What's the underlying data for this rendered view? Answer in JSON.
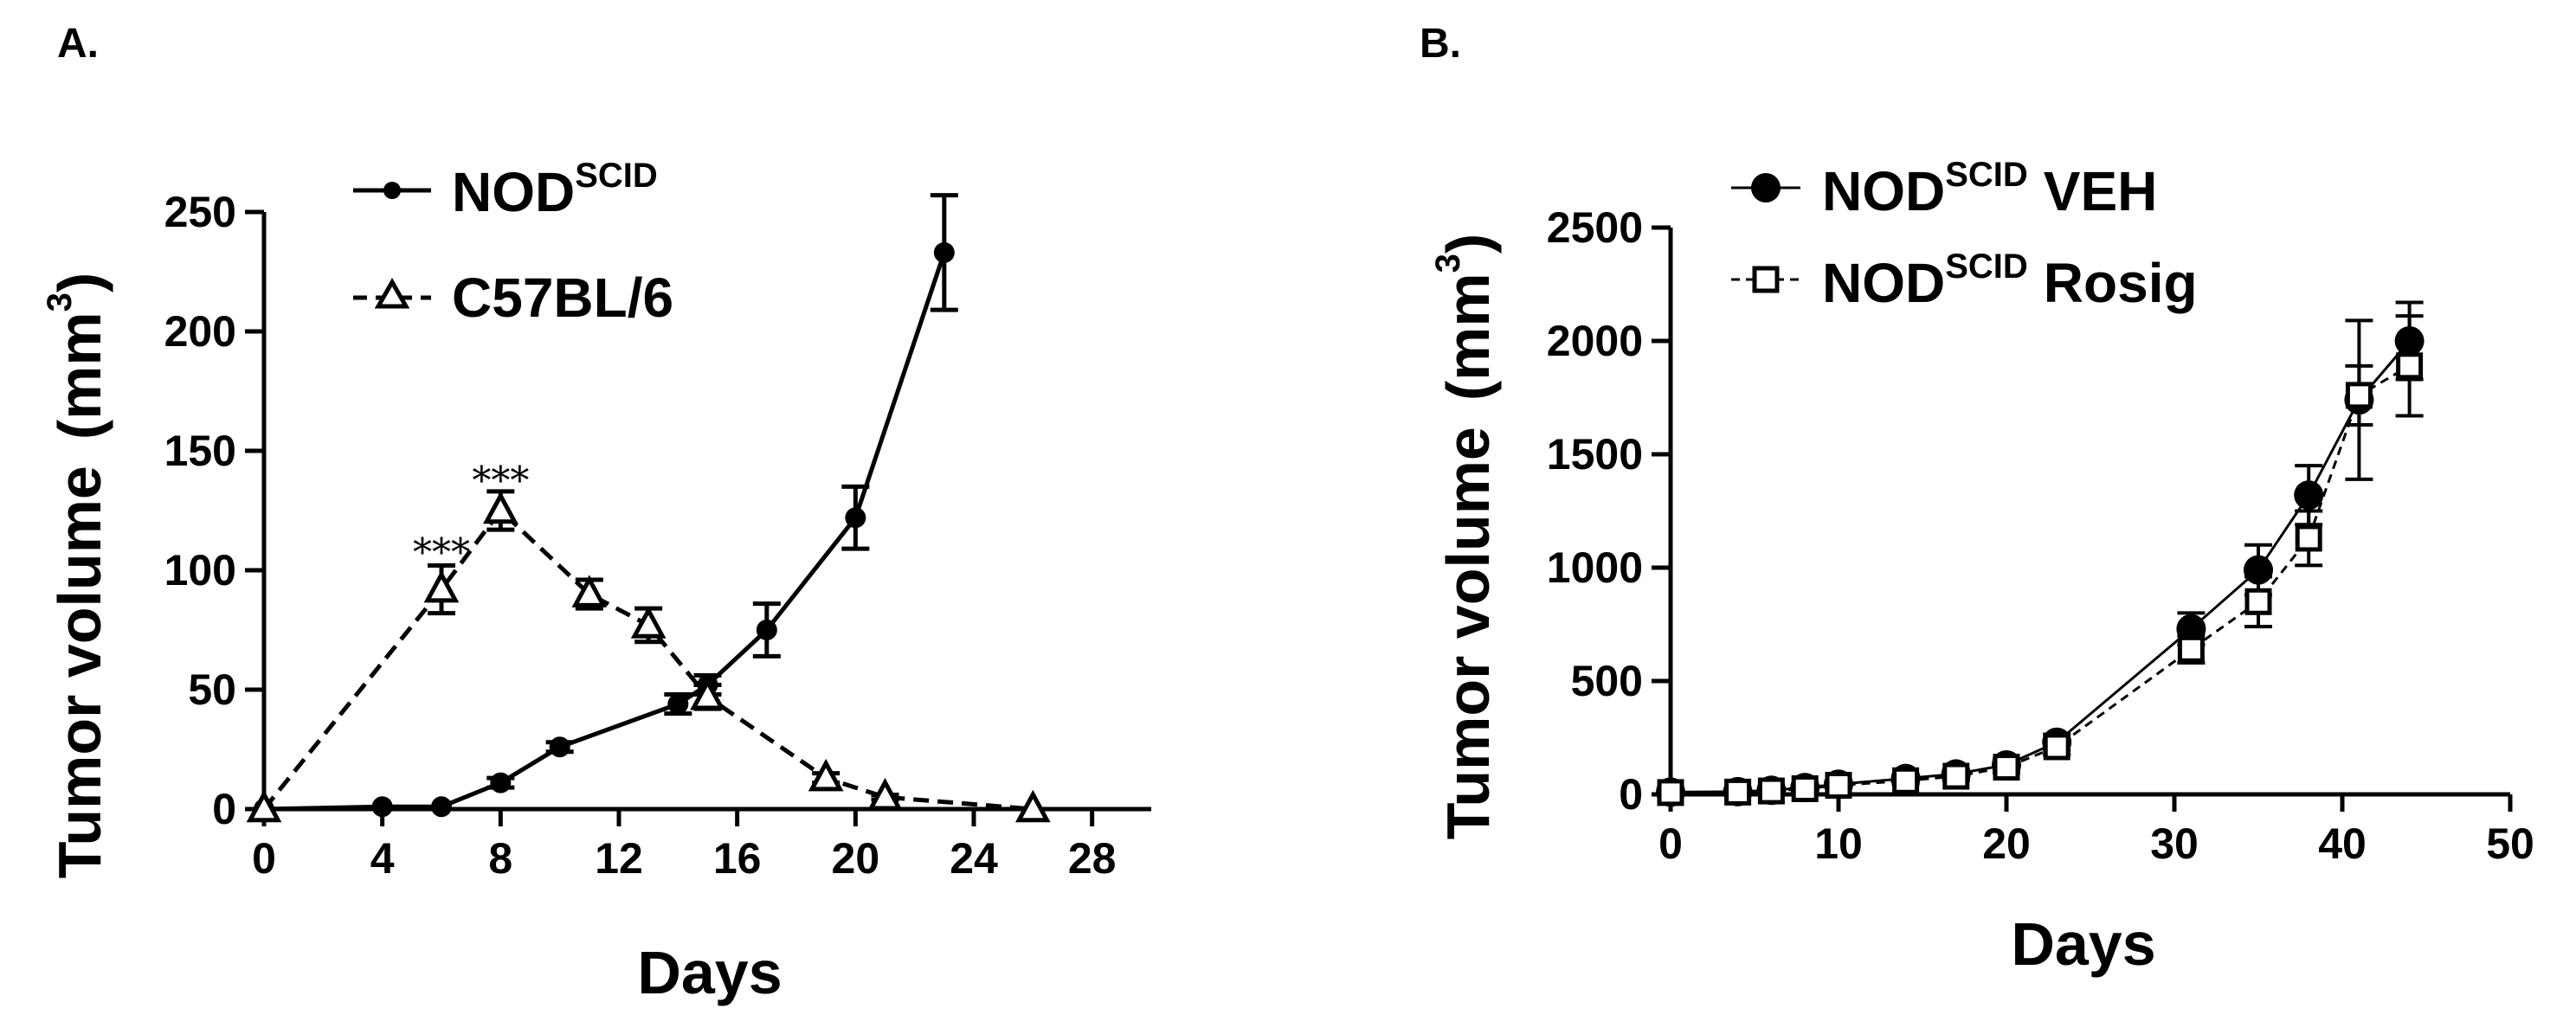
{
  "panels": {
    "a": {
      "label": "A."
    },
    "b": {
      "label": "B."
    }
  },
  "colors": {
    "ink": "#000000",
    "background": "#ffffff"
  },
  "chart_data": [
    {
      "type": "line",
      "panel": "A.",
      "xlabel": "Days",
      "ylabel": "Tumor volume",
      "ylabel_unit": "(mm3)",
      "xlim": [
        0,
        30
      ],
      "ylim": [
        0,
        250
      ],
      "xticks": [
        "0",
        "4",
        "8",
        "12",
        "16",
        "20",
        "24",
        "28"
      ],
      "yticks": [
        "0",
        "50",
        "100",
        "150",
        "200",
        "250"
      ],
      "grid": false,
      "legend_position": "top-center",
      "series": [
        {
          "name": "NODSCID",
          "name_main": "NOD",
          "name_sup": "SCID",
          "marker": "filled-circle",
          "line": "solid",
          "x": [
            0,
            4,
            6,
            8,
            10,
            14,
            15,
            17,
            20,
            23
          ],
          "y": [
            0,
            1,
            1,
            11,
            26,
            44,
            52,
            75,
            122,
            233
          ],
          "err": [
            0,
            0,
            0,
            2,
            2,
            4,
            4,
            11,
            13,
            24
          ]
        },
        {
          "name": "C57BL/6",
          "marker": "open-triangle",
          "line": "dashed",
          "x": [
            0,
            6,
            8,
            11,
            13,
            15,
            19,
            21,
            26
          ],
          "y": [
            0,
            92,
            125,
            90,
            77,
            47,
            13,
            5,
            0
          ],
          "err": [
            0,
            10,
            8,
            6,
            7,
            5,
            2,
            1,
            0
          ]
        }
      ],
      "annotations": [
        {
          "text": "***",
          "x": 6,
          "y": 110
        },
        {
          "text": "***",
          "x": 8,
          "y": 140
        }
      ]
    },
    {
      "type": "line",
      "panel": "B.",
      "xlabel": "Days",
      "ylabel": "Tumor volume",
      "ylabel_unit": "(mm3)",
      "xlim": [
        0,
        50
      ],
      "ylim": [
        0,
        2500
      ],
      "xticks": [
        "0",
        "10",
        "20",
        "30",
        "40",
        "50"
      ],
      "yticks": [
        "0",
        "500",
        "1000",
        "1500",
        "2000",
        "2500"
      ],
      "grid": false,
      "legend_position": "top-right",
      "series": [
        {
          "name": "NODSCID VEH",
          "name_main": "NOD",
          "name_sup": "SCID",
          "name_suffix": "VEH",
          "marker": "filled-circle",
          "line": "solid",
          "x": [
            0,
            4,
            6,
            8,
            10,
            14,
            17,
            20,
            23,
            31,
            35,
            38,
            41,
            44
          ],
          "y": [
            10,
            12,
            18,
            30,
            45,
            70,
            90,
            130,
            230,
            730,
            990,
            1320,
            1740,
            2000
          ],
          "err": [
            5,
            5,
            8,
            10,
            12,
            15,
            18,
            25,
            35,
            70,
            110,
            130,
            350,
            170
          ]
        },
        {
          "name": "NODSCID Rosig",
          "name_main": "NOD",
          "name_sup": "SCID",
          "name_suffix": "Rosig",
          "marker": "open-square",
          "line": "dashed",
          "x": [
            0,
            4,
            6,
            8,
            10,
            14,
            17,
            20,
            23,
            31,
            35,
            38,
            41,
            44
          ],
          "y": [
            8,
            10,
            15,
            25,
            40,
            60,
            80,
            120,
            210,
            640,
            850,
            1130,
            1760,
            1890
          ],
          "err": [
            5,
            5,
            8,
            10,
            12,
            15,
            18,
            25,
            35,
            60,
            110,
            120,
            130,
            220
          ]
        }
      ]
    }
  ]
}
